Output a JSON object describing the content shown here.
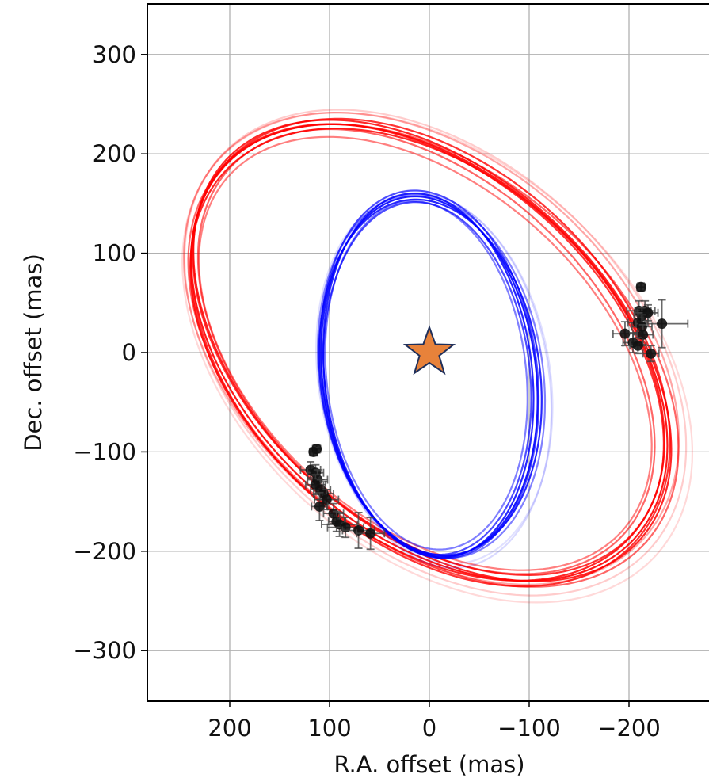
{
  "chart_data": {
    "type": "scatter",
    "title": "",
    "xlabel": "R.A. offset (mas)",
    "ylabel": "Dec. offset (mas)",
    "x_inverted": true,
    "xlim": [
      282,
      -282
    ],
    "ylim": [
      -351,
      352
    ],
    "xticks": [
      200,
      100,
      0,
      -100,
      -200
    ],
    "xtick_labels": [
      "200",
      "100",
      "0",
      "−100",
      "−200"
    ],
    "yticks": [
      300,
      200,
      100,
      0,
      -100,
      -200,
      -300
    ],
    "ytick_labels": [
      "300",
      "200",
      "100",
      "0",
      "−100",
      "−200",
      "−300"
    ],
    "grid": true,
    "star": {
      "x": 0,
      "y": 0,
      "color": "#e8823a",
      "edge": "#1f2f5a"
    },
    "orbits": [
      {
        "color": "#ff0000",
        "note": "outer companion orbit draws",
        "draws": [
          {
            "a": 278,
            "b": 180,
            "theta": 0.74,
            "cx": 0,
            "cy": 0,
            "alpha": 0.9
          },
          {
            "a": 282,
            "b": 178,
            "theta": 0.75,
            "cx": -3,
            "cy": 2,
            "alpha": 0.85
          },
          {
            "a": 274,
            "b": 182,
            "theta": 0.73,
            "cx": 2,
            "cy": -2,
            "alpha": 0.85
          },
          {
            "a": 280,
            "b": 186,
            "theta": 0.76,
            "cx": -1,
            "cy": 0,
            "alpha": 0.8
          },
          {
            "a": 276,
            "b": 176,
            "theta": 0.74,
            "cx": 1,
            "cy": 3,
            "alpha": 0.8
          },
          {
            "a": 284,
            "b": 184,
            "theta": 0.72,
            "cx": -4,
            "cy": -3,
            "alpha": 0.6
          },
          {
            "a": 270,
            "b": 172,
            "theta": 0.76,
            "cx": 3,
            "cy": 1,
            "alpha": 0.6
          },
          {
            "a": 286,
            "b": 190,
            "theta": 0.73,
            "cx": -2,
            "cy": 4,
            "alpha": 0.35
          },
          {
            "a": 292,
            "b": 194,
            "theta": 0.75,
            "cx": -6,
            "cy": 0,
            "alpha": 0.2
          },
          {
            "a": 296,
            "b": 196,
            "theta": 0.74,
            "cx": -8,
            "cy": -5,
            "alpha": 0.15
          },
          {
            "a": 266,
            "b": 168,
            "theta": 0.74,
            "cx": 4,
            "cy": -1,
            "alpha": 0.5
          }
        ]
      },
      {
        "color": "#0000ff",
        "note": "inner companion orbit draws",
        "draws": [
          {
            "a": 182,
            "b": 107,
            "theta": 1.45,
            "cx": 0,
            "cy": -24,
            "alpha": 0.9
          },
          {
            "a": 184,
            "b": 104,
            "theta": 1.46,
            "cx": 1,
            "cy": -23,
            "alpha": 0.85
          },
          {
            "a": 180,
            "b": 110,
            "theta": 1.44,
            "cx": -1,
            "cy": -25,
            "alpha": 0.85
          },
          {
            "a": 186,
            "b": 108,
            "theta": 1.45,
            "cx": 0,
            "cy": -22,
            "alpha": 0.7
          },
          {
            "a": 178,
            "b": 103,
            "theta": 1.47,
            "cx": 2,
            "cy": -26,
            "alpha": 0.7
          },
          {
            "a": 184,
            "b": 112,
            "theta": 1.43,
            "cx": -2,
            "cy": -24,
            "alpha": 0.5
          },
          {
            "a": 190,
            "b": 114,
            "theta": 1.42,
            "cx": -6,
            "cy": -28,
            "alpha": 0.15
          },
          {
            "a": 188,
            "b": 116,
            "theta": 1.41,
            "cx": -5,
            "cy": -26,
            "alpha": 0.12
          },
          {
            "a": 176,
            "b": 100,
            "theta": 1.46,
            "cx": 3,
            "cy": -23,
            "alpha": 0.5
          }
        ]
      }
    ],
    "observations": [
      {
        "x": -212,
        "y": 66,
        "xerr": 4,
        "yerr": 4
      },
      {
        "x": -210,
        "y": 42,
        "xerr": 12,
        "yerr": 10
      },
      {
        "x": -216,
        "y": 42,
        "xerr": 10,
        "yerr": 10
      },
      {
        "x": -213,
        "y": 37,
        "xerr": 8,
        "yerr": 8
      },
      {
        "x": -219,
        "y": 40,
        "xerr": 10,
        "yerr": 8
      },
      {
        "x": -209,
        "y": 30,
        "xerr": 10,
        "yerr": 10
      },
      {
        "x": -233,
        "y": 29,
        "xerr": 26,
        "yerr": 24
      },
      {
        "x": -213,
        "y": 26,
        "xerr": 10,
        "yerr": 12
      },
      {
        "x": -196,
        "y": 19,
        "xerr": 12,
        "yerr": 12
      },
      {
        "x": -214,
        "y": 18,
        "xerr": 10,
        "yerr": 10
      },
      {
        "x": -204,
        "y": 10,
        "xerr": 10,
        "yerr": 10
      },
      {
        "x": -209,
        "y": 7,
        "xerr": 8,
        "yerr": 8
      },
      {
        "x": -222,
        "y": -1,
        "xerr": 8,
        "yerr": 8
      },
      {
        "x": 113,
        "y": -97,
        "xerr": 4,
        "yerr": 4
      },
      {
        "x": 116,
        "y": -100,
        "xerr": 4,
        "yerr": 4
      },
      {
        "x": 119,
        "y": -118,
        "xerr": 10,
        "yerr": 8
      },
      {
        "x": 114,
        "y": -121,
        "xerr": 8,
        "yerr": 8
      },
      {
        "x": 112,
        "y": -128,
        "xerr": 10,
        "yerr": 10
      },
      {
        "x": 114,
        "y": -133,
        "xerr": 10,
        "yerr": 10
      },
      {
        "x": 109,
        "y": -138,
        "xerr": 10,
        "yerr": 10
      },
      {
        "x": 106,
        "y": -142,
        "xerr": 10,
        "yerr": 12
      },
      {
        "x": 103,
        "y": -148,
        "xerr": 12,
        "yerr": 10
      },
      {
        "x": 110,
        "y": -155,
        "xerr": 8,
        "yerr": 14
      },
      {
        "x": 96,
        "y": -162,
        "xerr": 10,
        "yerr": 10
      },
      {
        "x": 93,
        "y": -170,
        "xerr": 8,
        "yerr": 10
      },
      {
        "x": 90,
        "y": -173,
        "xerr": 18,
        "yerr": 12
      },
      {
        "x": 84,
        "y": -176,
        "xerr": 18,
        "yerr": 10
      },
      {
        "x": 71,
        "y": -179,
        "xerr": 16,
        "yerr": 18
      },
      {
        "x": 59,
        "y": -182,
        "xerr": 14,
        "yerr": 16
      }
    ]
  }
}
